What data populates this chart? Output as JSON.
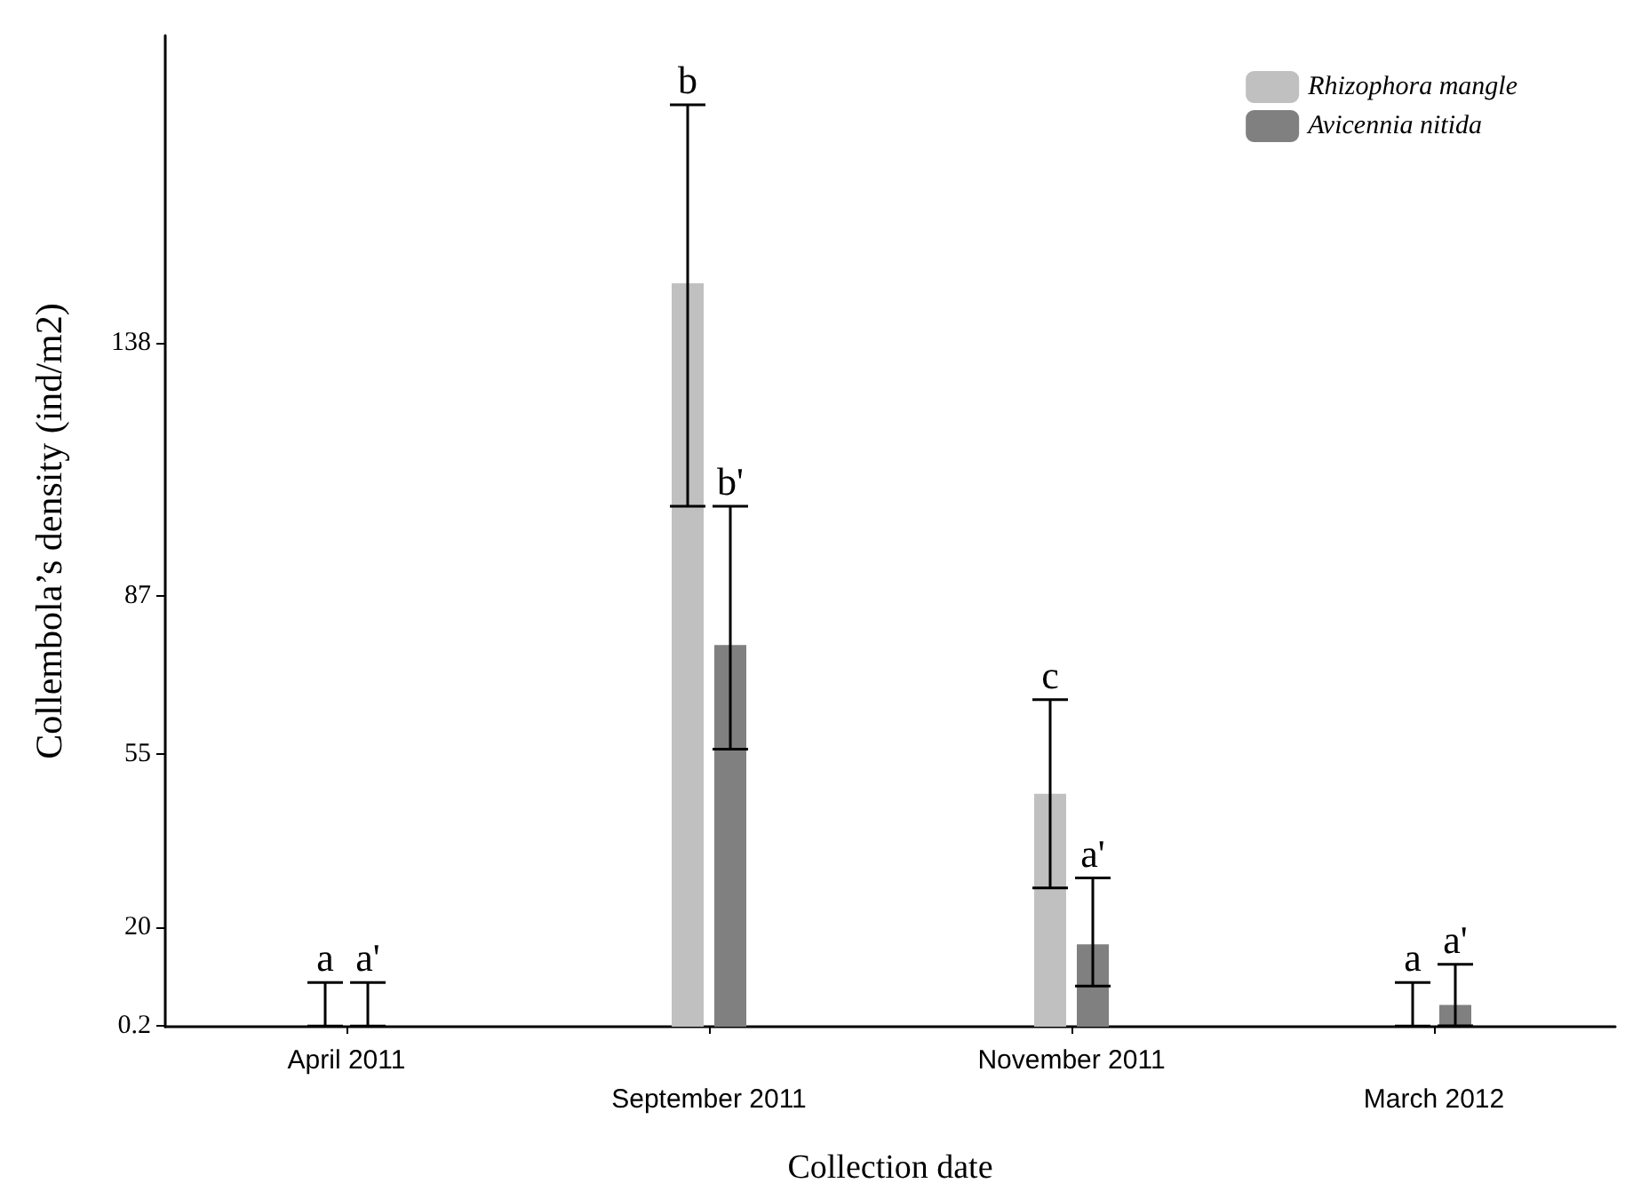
{
  "chart_data": {
    "type": "bar",
    "xlabel": "Collection date",
    "ylabel": "Collembola’s density (ind/m2)",
    "categories": [
      "April 2011",
      "September 2011",
      "November 2011",
      "March 2012"
    ],
    "series": [
      {
        "name": "Rhizophora mangle",
        "color": "#c0c0c0",
        "values": [
          0.2,
          150,
          47,
          0.2
        ],
        "errors": [
          [
            0.12,
            8.9
          ],
          [
            105,
            186
          ],
          [
            28,
            66
          ],
          [
            0.12,
            8.9
          ]
        ]
      },
      {
        "name": "Avicennia nitida",
        "color": "#808080",
        "values": [
          0.2,
          77,
          16.6,
          4.4
        ],
        "errors": [
          [
            0.12,
            8.9
          ],
          [
            56,
            105
          ],
          [
            8.2,
            30
          ],
          [
            0.16,
            12.6
          ]
        ]
      }
    ],
    "ylim": [
      0,
      200
    ],
    "yticks": [
      0.2,
      20,
      55,
      87,
      138
    ],
    "annotations": [
      {
        "text": "a",
        "x": "April 2011",
        "y": 8.9
      },
      {
        "text": "a'",
        "x": "April 2011",
        "y": 8.9
      },
      {
        "text": "b",
        "x": "September 2011",
        "y": 186
      },
      {
        "text": "b'",
        "x": "September 2011",
        "y": 105
      },
      {
        "text": "c",
        "x": "November 2011",
        "y": 66
      },
      {
        "text": "a'",
        "x": "November 2011",
        "y": 30
      },
      {
        "text": "a",
        "x": "March 2012",
        "y": 8.9
      },
      {
        "text": "a'",
        "x": "March 2012",
        "y": 12.6
      }
    ],
    "legend": "top right",
    "grid": false
  }
}
